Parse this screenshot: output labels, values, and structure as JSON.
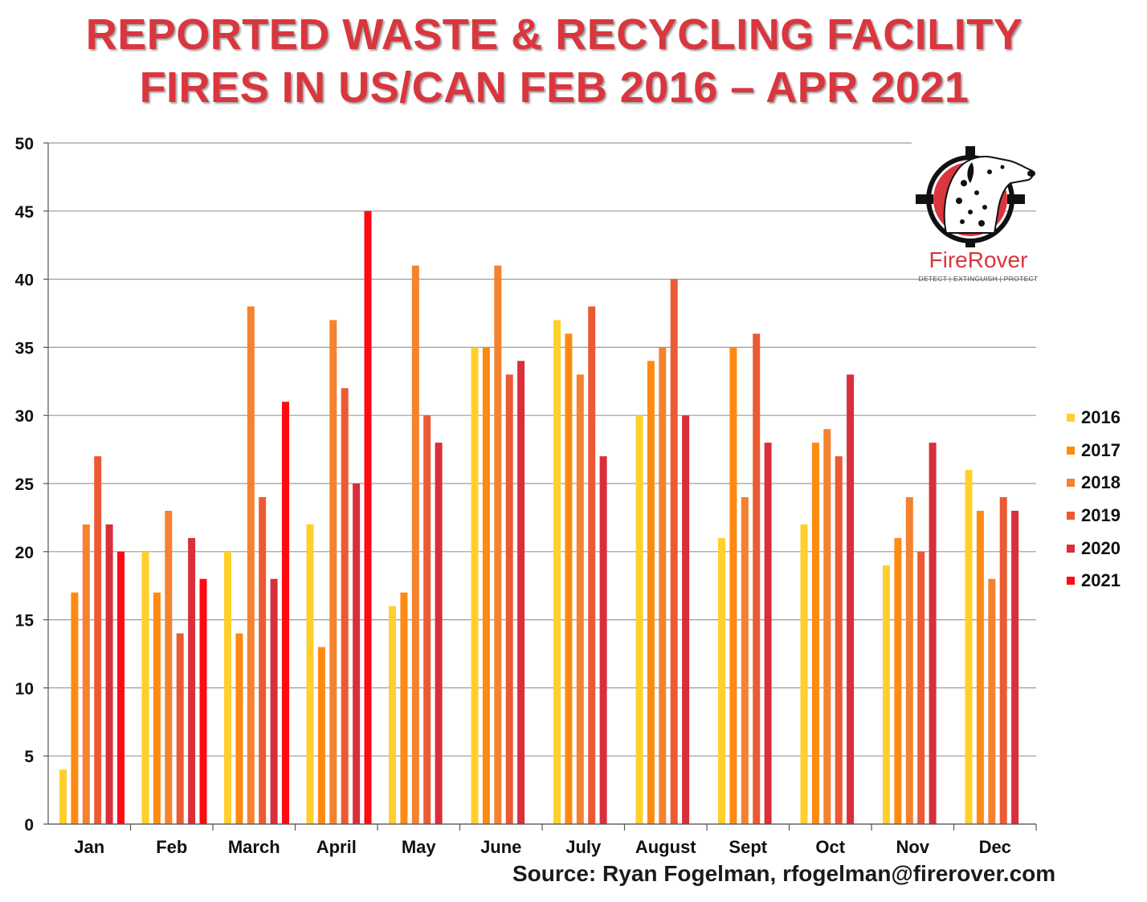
{
  "title": {
    "line1": "REPORTED WASTE & RECYCLING FACILITY",
    "line2": "FIRES IN US/CAN FEB 2016 – APR 2021"
  },
  "logo": {
    "name": "FireRover",
    "tagline": "DETECT  |  EXTINGUISH  |  PROTECT",
    "icon": "dalmatian-crosshair-icon"
  },
  "source": "Source: Ryan Fogelman, rfogelman@firerover.com",
  "colors": {
    "2016": "#ffd02b",
    "2017": "#ff8a12",
    "2018": "#f5822e",
    "2019": "#ec5a33",
    "2020": "#d92f3a",
    "2021": "#ff0a12",
    "grid": "#9a9a9a"
  },
  "chart_data": {
    "type": "bar",
    "title": "REPORTED WASTE & RECYCLING FACILITY FIRES IN US/CAN FEB 2016 – APR 2021",
    "xlabel": "",
    "ylabel": "",
    "ylim": [
      0,
      50
    ],
    "yticks": [
      0,
      5,
      10,
      15,
      20,
      25,
      30,
      35,
      40,
      45,
      50
    ],
    "grid": true,
    "legend_position": "right",
    "categories": [
      "Jan",
      "Feb",
      "March",
      "April",
      "May",
      "June",
      "July",
      "August",
      "Sept",
      "Oct",
      "Nov",
      "Dec"
    ],
    "series": [
      {
        "name": "2016",
        "values": [
          4,
          20,
          20,
          22,
          16,
          35,
          37,
          30,
          21,
          22,
          19,
          26
        ]
      },
      {
        "name": "2017",
        "values": [
          17,
          17,
          14,
          13,
          17,
          35,
          36,
          34,
          35,
          28,
          21,
          23
        ]
      },
      {
        "name": "2018",
        "values": [
          22,
          23,
          38,
          37,
          41,
          41,
          33,
          35,
          24,
          29,
          24,
          18
        ]
      },
      {
        "name": "2019",
        "values": [
          27,
          14,
          24,
          32,
          30,
          33,
          38,
          40,
          36,
          27,
          20,
          24
        ]
      },
      {
        "name": "2020",
        "values": [
          22,
          21,
          18,
          25,
          28,
          34,
          27,
          30,
          28,
          33,
          28,
          23
        ]
      },
      {
        "name": "2021",
        "values": [
          20,
          18,
          31,
          45,
          null,
          null,
          null,
          null,
          null,
          null,
          null,
          null
        ]
      }
    ]
  }
}
